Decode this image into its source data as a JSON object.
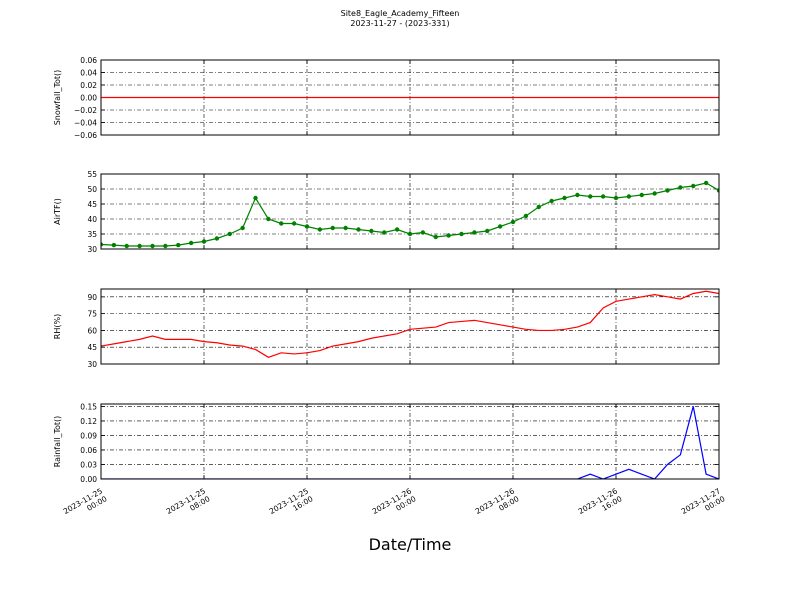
{
  "figure": {
    "title": "Site8_Eagle_Academy_Fifteen",
    "subtitle": "2023-11-27 - (2023-331)",
    "xlabel": "Date/Time"
  },
  "chart_data": [
    {
      "type": "line",
      "ylabel": "Snowfall_Tot()",
      "ylim": [
        -0.06,
        0.06
      ],
      "yticks": [
        0.06,
        0.04,
        0.02,
        {
          "value": 0,
          "label": "0.00"
        },
        {
          "value": -0.02,
          "label": "−0.02"
        },
        {
          "value": -0.04,
          "label": "−0.04"
        },
        {
          "value": -0.06,
          "label": "−0.06"
        }
      ],
      "xlim": [
        "2023-11-25 00:00",
        "2023-11-27 00:00"
      ],
      "xticks": [
        "2023-11-25 00:00",
        "2023-11-25 08:00",
        "2023-11-25 16:00",
        "2023-11-26 00:00",
        "2023-11-26 08:00",
        "2023-11-26 16:00",
        "2023-11-27 00:00"
      ],
      "grid": true,
      "markers": false,
      "x": [
        "2023-11-25 00:00",
        "2023-11-25 01:00",
        "2023-11-25 02:00",
        "2023-11-25 03:00",
        "2023-11-25 04:00",
        "2023-11-25 05:00",
        "2023-11-25 06:00",
        "2023-11-25 07:00",
        "2023-11-25 08:00",
        "2023-11-25 09:00",
        "2023-11-25 10:00",
        "2023-11-25 11:00",
        "2023-11-25 12:00",
        "2023-11-25 13:00",
        "2023-11-25 14:00",
        "2023-11-25 15:00",
        "2023-11-25 16:00",
        "2023-11-25 17:00",
        "2023-11-25 18:00",
        "2023-11-25 19:00",
        "2023-11-25 20:00",
        "2023-11-25 21:00",
        "2023-11-25 22:00",
        "2023-11-25 23:00",
        "2023-11-26 00:00",
        "2023-11-26 01:00",
        "2023-11-26 02:00",
        "2023-11-26 03:00",
        "2023-11-26 04:00",
        "2023-11-26 05:00",
        "2023-11-26 06:00",
        "2023-11-26 07:00",
        "2023-11-26 08:00",
        "2023-11-26 09:00",
        "2023-11-26 10:00",
        "2023-11-26 11:00",
        "2023-11-26 12:00",
        "2023-11-26 13:00",
        "2023-11-26 14:00",
        "2023-11-26 15:00",
        "2023-11-26 16:00",
        "2023-11-26 17:00",
        "2023-11-26 18:00",
        "2023-11-26 19:00",
        "2023-11-26 20:00",
        "2023-11-26 21:00",
        "2023-11-26 22:00",
        "2023-11-26 23:00",
        "2023-11-27 00:00"
      ],
      "series": [
        {
          "color": "#ff0000",
          "values": [
            0,
            0,
            0,
            0,
            0,
            0,
            0,
            0,
            0,
            0,
            0,
            0,
            0,
            0,
            0,
            0,
            0,
            0,
            0,
            0,
            0,
            0,
            0,
            0,
            0,
            0,
            0,
            0,
            0,
            0,
            0,
            0,
            0,
            0,
            0,
            0,
            0,
            0,
            0,
            0,
            0,
            0,
            0,
            0,
            0,
            0,
            0,
            0,
            0
          ]
        }
      ]
    },
    {
      "type": "line",
      "ylabel": "AirTF()",
      "ylim": [
        30,
        55
      ],
      "yticks": [
        55,
        50,
        45,
        40,
        35,
        30
      ],
      "xlim": [
        "2023-11-25 00:00",
        "2023-11-27 00:00"
      ],
      "xticks": [
        "2023-11-25 00:00",
        "2023-11-25 08:00",
        "2023-11-25 16:00",
        "2023-11-26 00:00",
        "2023-11-26 08:00",
        "2023-11-26 16:00",
        "2023-11-27 00:00"
      ],
      "grid": true,
      "markers": true,
      "x": [
        "2023-11-25 00:00",
        "2023-11-25 01:00",
        "2023-11-25 02:00",
        "2023-11-25 03:00",
        "2023-11-25 04:00",
        "2023-11-25 05:00",
        "2023-11-25 06:00",
        "2023-11-25 07:00",
        "2023-11-25 08:00",
        "2023-11-25 09:00",
        "2023-11-25 10:00",
        "2023-11-25 11:00",
        "2023-11-25 12:00",
        "2023-11-25 13:00",
        "2023-11-25 14:00",
        "2023-11-25 15:00",
        "2023-11-25 16:00",
        "2023-11-25 17:00",
        "2023-11-25 18:00",
        "2023-11-25 19:00",
        "2023-11-25 20:00",
        "2023-11-25 21:00",
        "2023-11-25 22:00",
        "2023-11-25 23:00",
        "2023-11-26 00:00",
        "2023-11-26 01:00",
        "2023-11-26 02:00",
        "2023-11-26 03:00",
        "2023-11-26 04:00",
        "2023-11-26 05:00",
        "2023-11-26 06:00",
        "2023-11-26 07:00",
        "2023-11-26 08:00",
        "2023-11-26 09:00",
        "2023-11-26 10:00",
        "2023-11-26 11:00",
        "2023-11-26 12:00",
        "2023-11-26 13:00",
        "2023-11-26 14:00",
        "2023-11-26 15:00",
        "2023-11-26 16:00",
        "2023-11-26 17:00",
        "2023-11-26 18:00",
        "2023-11-26 19:00",
        "2023-11-26 20:00",
        "2023-11-26 21:00",
        "2023-11-26 22:00",
        "2023-11-26 23:00",
        "2023-11-27 00:00"
      ],
      "series": [
        {
          "color": "#008000",
          "values": [
            31.5,
            31.3,
            31,
            31,
            31,
            31,
            31.3,
            32,
            32.5,
            33.5,
            35,
            37,
            47,
            40,
            38.5,
            38.5,
            37.5,
            36.5,
            37,
            37,
            36.5,
            36,
            35.5,
            36.5,
            35,
            35.5,
            34,
            34.5,
            35,
            35.5,
            36,
            37.5,
            39,
            41,
            44,
            46,
            47,
            48,
            47.5,
            47.5,
            47,
            47.5,
            48,
            48.5,
            49.5,
            50.5,
            51,
            52,
            49.5
          ]
        }
      ]
    },
    {
      "type": "line",
      "ylabel": "RH(%)",
      "ylim": [
        30,
        97
      ],
      "yticks": [
        90,
        75,
        60,
        45,
        30
      ],
      "xlim": [
        "2023-11-25 00:00",
        "2023-11-27 00:00"
      ],
      "xticks": [
        "2023-11-25 00:00",
        "2023-11-25 08:00",
        "2023-11-25 16:00",
        "2023-11-26 00:00",
        "2023-11-26 08:00",
        "2023-11-26 16:00",
        "2023-11-27 00:00"
      ],
      "grid": true,
      "markers": false,
      "x": [
        "2023-11-25 00:00",
        "2023-11-25 01:00",
        "2023-11-25 02:00",
        "2023-11-25 03:00",
        "2023-11-25 04:00",
        "2023-11-25 05:00",
        "2023-11-25 06:00",
        "2023-11-25 07:00",
        "2023-11-25 08:00",
        "2023-11-25 09:00",
        "2023-11-25 10:00",
        "2023-11-25 11:00",
        "2023-11-25 12:00",
        "2023-11-25 13:00",
        "2023-11-25 14:00",
        "2023-11-25 15:00",
        "2023-11-25 16:00",
        "2023-11-25 17:00",
        "2023-11-25 18:00",
        "2023-11-25 19:00",
        "2023-11-25 20:00",
        "2023-11-25 21:00",
        "2023-11-25 22:00",
        "2023-11-25 23:00",
        "2023-11-26 00:00",
        "2023-11-26 01:00",
        "2023-11-26 02:00",
        "2023-11-26 03:00",
        "2023-11-26 04:00",
        "2023-11-26 05:00",
        "2023-11-26 06:00",
        "2023-11-26 07:00",
        "2023-11-26 08:00",
        "2023-11-26 09:00",
        "2023-11-26 10:00",
        "2023-11-26 11:00",
        "2023-11-26 12:00",
        "2023-11-26 13:00",
        "2023-11-26 14:00",
        "2023-11-26 15:00",
        "2023-11-26 16:00",
        "2023-11-26 17:00",
        "2023-11-26 18:00",
        "2023-11-26 19:00",
        "2023-11-26 20:00",
        "2023-11-26 21:00",
        "2023-11-26 22:00",
        "2023-11-26 23:00",
        "2023-11-27 00:00"
      ],
      "series": [
        {
          "color": "#ff0000",
          "values": [
            46,
            48,
            50,
            52,
            55,
            52,
            52,
            52,
            50,
            49,
            47,
            46,
            43,
            36,
            40,
            39,
            40,
            42,
            46,
            48,
            50,
            53,
            55,
            57,
            61,
            62,
            63,
            67,
            68,
            69,
            67,
            65,
            63,
            61,
            60,
            60,
            61,
            63,
            67,
            80,
            86,
            88,
            90,
            92,
            90,
            88,
            93,
            95,
            93
          ]
        }
      ]
    },
    {
      "type": "line",
      "ylabel": "Rainfall_Tot()",
      "ylim": [
        0,
        0.155
      ],
      "yticks": [
        0.15,
        0.12,
        0.09,
        0.06,
        0.03,
        {
          "value": 0,
          "label": "0.00"
        }
      ],
      "xlim": [
        "2023-11-25 00:00",
        "2023-11-27 00:00"
      ],
      "xticks": [
        "2023-11-25 00:00",
        "2023-11-25 08:00",
        "2023-11-25 16:00",
        "2023-11-26 00:00",
        "2023-11-26 08:00",
        "2023-11-26 16:00",
        "2023-11-27 00:00"
      ],
      "grid": true,
      "markers": false,
      "show_xticklabels": true,
      "x": [
        "2023-11-25 00:00",
        "2023-11-25 01:00",
        "2023-11-25 02:00",
        "2023-11-25 03:00",
        "2023-11-25 04:00",
        "2023-11-25 05:00",
        "2023-11-25 06:00",
        "2023-11-25 07:00",
        "2023-11-25 08:00",
        "2023-11-25 09:00",
        "2023-11-25 10:00",
        "2023-11-25 11:00",
        "2023-11-25 12:00",
        "2023-11-25 13:00",
        "2023-11-25 14:00",
        "2023-11-25 15:00",
        "2023-11-25 16:00",
        "2023-11-25 17:00",
        "2023-11-25 18:00",
        "2023-11-25 19:00",
        "2023-11-25 20:00",
        "2023-11-25 21:00",
        "2023-11-25 22:00",
        "2023-11-25 23:00",
        "2023-11-26 00:00",
        "2023-11-26 01:00",
        "2023-11-26 02:00",
        "2023-11-26 03:00",
        "2023-11-26 04:00",
        "2023-11-26 05:00",
        "2023-11-26 06:00",
        "2023-11-26 07:00",
        "2023-11-26 08:00",
        "2023-11-26 09:00",
        "2023-11-26 10:00",
        "2023-11-26 11:00",
        "2023-11-26 12:00",
        "2023-11-26 13:00",
        "2023-11-26 14:00",
        "2023-11-26 15:00",
        "2023-11-26 16:00",
        "2023-11-26 17:00",
        "2023-11-26 18:00",
        "2023-11-26 19:00",
        "2023-11-26 20:00",
        "2023-11-26 21:00",
        "2023-11-26 22:00",
        "2023-11-26 23:00",
        "2023-11-27 00:00"
      ],
      "series": [
        {
          "color": "#0000ff",
          "values": [
            0,
            0,
            0,
            0,
            0,
            0,
            0,
            0,
            0,
            0,
            0,
            0,
            0,
            0,
            0,
            0,
            0,
            0,
            0,
            0,
            0,
            0,
            0,
            0,
            0,
            0,
            0,
            0,
            0,
            0,
            0,
            0,
            0,
            0,
            0,
            0,
            0,
            0,
            0.01,
            0,
            0.01,
            0.02,
            0.01,
            0,
            0.03,
            0.05,
            0.15,
            0.01,
            0
          ]
        }
      ]
    }
  ]
}
